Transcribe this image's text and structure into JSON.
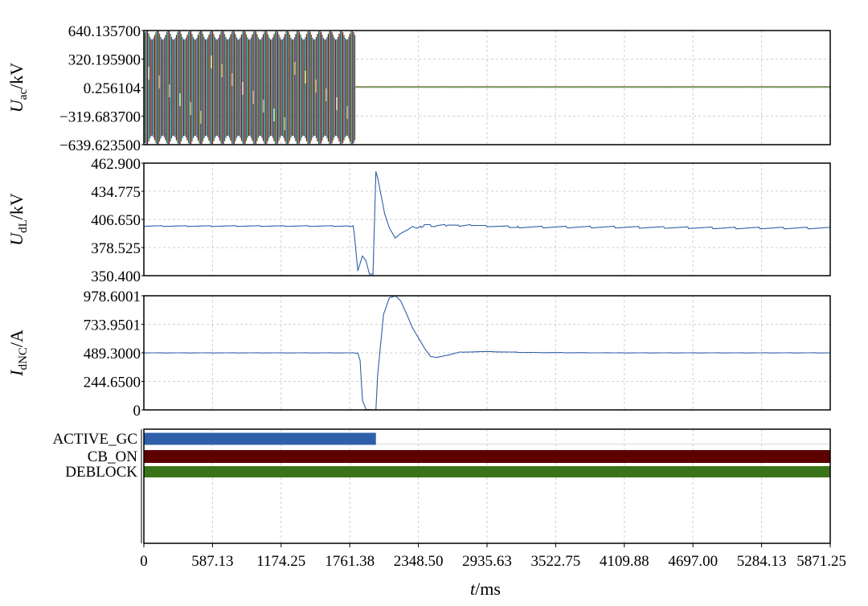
{
  "chart_data": [
    {
      "type": "line",
      "ylabel": {
        "main": "U",
        "sub": "ac",
        "unit": "/kV"
      },
      "yticks": [
        "640.135700",
        "320.195900",
        "0.256104",
        "−319.683700",
        "−639.623500"
      ],
      "ylim": [
        -639.6235,
        640.1357
      ],
      "xlim": [
        0,
        5871.25
      ],
      "grid": true,
      "series": [
        {
          "segment": "oscillating three-phase waveform",
          "x_range": [
            0,
            1810
          ],
          "amplitude": 640,
          "after_value": 5,
          "colors": [
            "#8b1a1a",
            "#2e7d32",
            "#2f5fa8",
            "#f0e8a0"
          ]
        }
      ]
    },
    {
      "type": "line",
      "ylabel": {
        "main": "U",
        "sub": "dL",
        "unit": "/kV"
      },
      "yticks": [
        "462.900",
        "434.775",
        "406.650",
        "378.525",
        "350.400"
      ],
      "ylim": [
        350.4,
        462.9
      ],
      "xlim": [
        0,
        5871.25
      ],
      "grid": true,
      "series": [
        {
          "color": "#2f5fa8",
          "x": [
            0,
            1761,
            1790,
            1800,
            1830,
            1870,
            1900,
            1930,
            1960,
            1985,
            2000,
            2030,
            2060,
            2100,
            2150,
            2200,
            2250,
            2300,
            2350,
            2400,
            2500,
            2600,
            2700,
            2800,
            2935,
            3200,
            4000,
            5000,
            5871
          ],
          "y": [
            400,
            400,
            400,
            392,
            355,
            370,
            365,
            352,
            352,
            455,
            448,
            430,
            412,
            398,
            388,
            393,
            396,
            400,
            398,
            401,
            400,
            401,
            400,
            401,
            400,
            399,
            399,
            398,
            398
          ]
        }
      ]
    },
    {
      "type": "line",
      "ylabel": {
        "main": "I",
        "sub": "dNC",
        "unit": "/A"
      },
      "yticks": [
        "978.6001",
        "733.9501",
        "489.3000",
        "244.6500",
        "0"
      ],
      "ylim": [
        0,
        978.6001
      ],
      "xlim": [
        0,
        5871.25
      ],
      "grid": true,
      "series": [
        {
          "color": "#2f5fa8",
          "x": [
            0,
            1800,
            1830,
            1850,
            1870,
            1900,
            1950,
            1985,
            2000,
            2050,
            2100,
            2150,
            2200,
            2300,
            2400,
            2450,
            2500,
            2600,
            2700,
            2935,
            3300,
            4000,
            5000,
            5871
          ],
          "y": [
            489,
            489,
            486,
            420,
            80,
            5,
            0,
            0,
            300,
            820,
            960,
            978,
            930,
            700,
            530,
            460,
            450,
            470,
            495,
            500,
            492,
            489,
            489,
            489
          ]
        }
      ]
    },
    {
      "type": "digital",
      "signals": [
        {
          "label": "ACTIVE_GC",
          "color": "#2f5fa8",
          "on_from": 0,
          "on_to": 1985
        },
        {
          "label": "CB_ON",
          "color": "#5c0000",
          "on_from": 0,
          "on_to": 5871.25
        },
        {
          "label": "DEBLOCK",
          "color": "#3a7318",
          "on_from": 0,
          "on_to": 5871.25
        }
      ],
      "xlim": [
        0,
        5871.25
      ]
    }
  ],
  "x_axis": {
    "label_italic": "t",
    "label_unit": "/ms",
    "ticks": [
      0,
      587.13,
      1174.25,
      1761.38,
      2348.5,
      2935.63,
      3522.75,
      4109.88,
      4697.0,
      5284.13,
      5871.25
    ],
    "tick_labels": [
      "0",
      "587.13",
      "1174.25",
      "1761.38",
      "2348.50",
      "2935.63",
      "3522.75",
      "4109.88",
      "4697.00",
      "5284.13",
      "5871.25"
    ]
  }
}
